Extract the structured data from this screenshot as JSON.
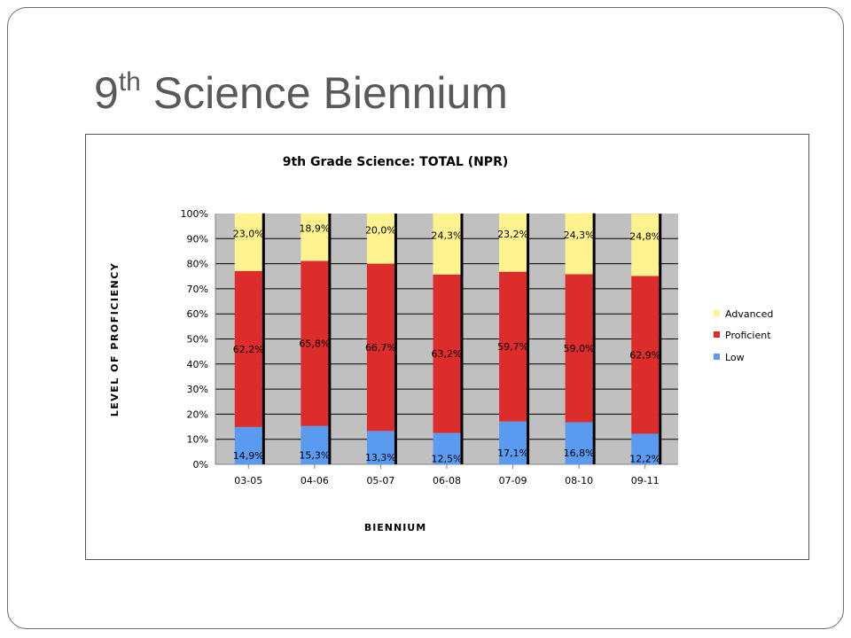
{
  "slide": {
    "title_main": "9",
    "title_sup": "th",
    "title_rest": " Science Biennium"
  },
  "colors": {
    "low": "#5b9bef",
    "proficient": "#dd2c2c",
    "advanced": "#fff38f",
    "plot_bg": "#c0c0c0",
    "gridline": "#000000"
  },
  "chart_data": {
    "type": "bar",
    "stacked": true,
    "title": "9th Grade Science:  TOTAL (NPR)",
    "xlabel": "BIENNIUM",
    "ylabel": "LEVEL OF PROFICIENCY",
    "ylim": [
      0,
      100
    ],
    "yticks": [
      "0%",
      "10%",
      "20%",
      "30%",
      "40%",
      "50%",
      "60%",
      "70%",
      "80%",
      "90%",
      "100%"
    ],
    "categories": [
      "03-05",
      "04-06",
      "05-07",
      "06-08",
      "07-09",
      "08-10",
      "09-11"
    ],
    "series": [
      {
        "name": "Low",
        "values": [
          14.9,
          15.3,
          13.3,
          12.5,
          17.1,
          16.8,
          12.2
        ],
        "labels": [
          "14,9%",
          "15,3%",
          "13,3%",
          "12,5%",
          "17,1%",
          "16,8%",
          "12,2%"
        ]
      },
      {
        "name": "Proficient",
        "values": [
          62.2,
          65.8,
          66.7,
          63.2,
          59.7,
          59.0,
          62.9
        ],
        "labels": [
          "62,2%",
          "65,8%",
          "66,7%",
          "63,2%",
          "59,7%",
          "59,0%",
          "62,9%"
        ]
      },
      {
        "name": "Advanced",
        "values": [
          23.0,
          18.9,
          20.0,
          24.3,
          23.2,
          24.3,
          24.8
        ],
        "labels": [
          "23,0%",
          "18,9%",
          "20,0%",
          "24,3%",
          "23,2%",
          "24,3%",
          "24,8%"
        ]
      }
    ],
    "legend": {
      "position": "right",
      "order": [
        "Advanced",
        "Proficient",
        "Low"
      ]
    },
    "grid": true
  }
}
